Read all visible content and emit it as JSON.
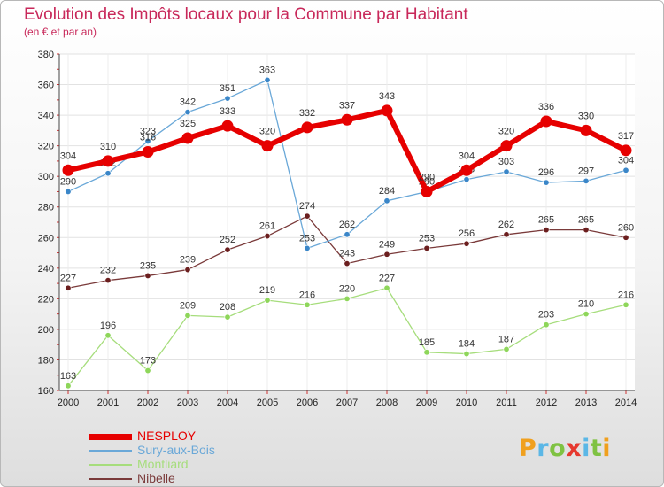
{
  "title": "Evolution des Impôts locaux pour la Commune par Habitant",
  "subtitle": "(en € et par an)",
  "logo": {
    "letters": [
      {
        "ch": "P",
        "color": "#f0a01e"
      },
      {
        "ch": "r",
        "color": "#5bb7e6"
      },
      {
        "ch": "o",
        "color": "#7fc242"
      },
      {
        "ch": "x",
        "color": "#e6392f"
      },
      {
        "ch": "i",
        "color": "#5bb7e6"
      },
      {
        "ch": "t",
        "color": "#7fc242"
      },
      {
        "ch": "i",
        "color": "#f0a01e"
      }
    ]
  },
  "chart_data": {
    "type": "line",
    "x": [
      "2000",
      "2001",
      "2002",
      "2003",
      "2004",
      "2005",
      "2006",
      "2007",
      "2008",
      "2009",
      "2010",
      "2011",
      "2012",
      "2013",
      "2014"
    ],
    "ylim": [
      160,
      380
    ],
    "yticks": [
      "160",
      "180",
      "200",
      "220",
      "240",
      "260",
      "280",
      "300",
      "320",
      "340",
      "360",
      "380"
    ],
    "grid": true,
    "legend_position": "bottom-left",
    "series": [
      {
        "name": "Nibelle",
        "color": "#6b1e1e",
        "line_color": "#7a3a3a",
        "width": 1.3,
        "marker": 3.2,
        "values": [
          227,
          232,
          235,
          239,
          252,
          261,
          274,
          243,
          249,
          253,
          256,
          262,
          265,
          265,
          260
        ]
      },
      {
        "name": "Montliard",
        "color": "#8ed65a",
        "line_color": "#a6dd7c",
        "width": 1.3,
        "marker": 3.2,
        "values": [
          163,
          196,
          173,
          209,
          208,
          219,
          216,
          220,
          227,
          185,
          184,
          187,
          203,
          210,
          216
        ]
      },
      {
        "name": "Sury-aux-Bois",
        "color": "#3a86c8",
        "line_color": "#6aa8d8",
        "width": 1.3,
        "marker": 3.2,
        "values": [
          290,
          302,
          323,
          342,
          351,
          363,
          253,
          262,
          284,
          290,
          298,
          303,
          296,
          297,
          304
        ]
      },
      {
        "name": "NESPLOY",
        "color": "#e60000",
        "line_color": "#e60000",
        "width": 6,
        "marker": 6.5,
        "values": [
          304,
          310,
          316,
          325,
          333,
          320,
          332,
          337,
          343,
          290,
          304,
          320,
          336,
          330,
          317
        ]
      }
    ],
    "legend_order": [
      "NESPLOY",
      "Sury-aux-Bois",
      "Montliard",
      "Nibelle"
    ]
  }
}
